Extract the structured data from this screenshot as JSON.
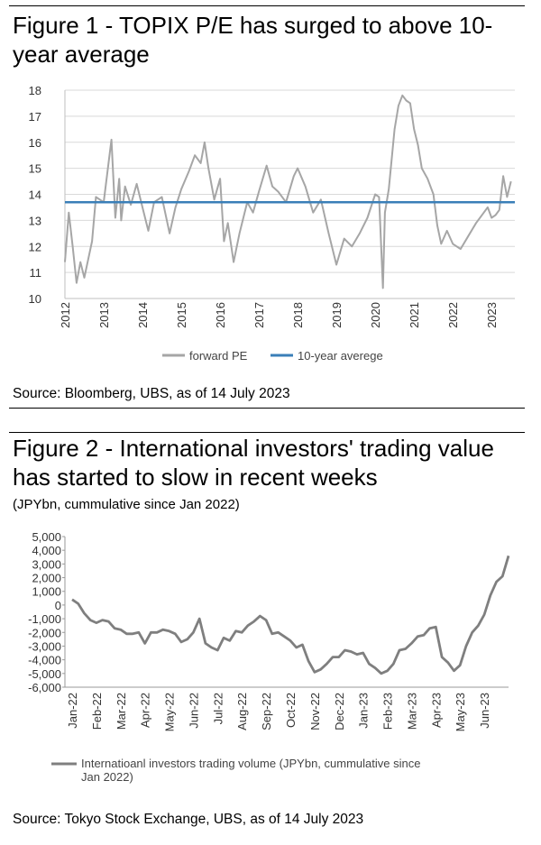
{
  "figure1": {
    "title": "Figure 1 - TOPIX P/E has surged to above 10-year average",
    "source": "Source: Bloomberg, UBS, as of 14 July 2023"
  },
  "figure2": {
    "title": "Figure 2 - International investors' trading value has started to slow in recent weeks",
    "subtitle": "(JPYbn, cummulative since Jan 2022)",
    "source": "Source: Tokyo Stock Exchange, UBS, as of 14 July 2023"
  },
  "chart_data": [
    {
      "type": "line",
      "title": "Figure 1 - TOPIX P/E has surged to above 10-year average",
      "ylim": [
        10,
        18
      ],
      "yticks": [
        10,
        11,
        12,
        13,
        14,
        15,
        16,
        17,
        18
      ],
      "xlim": [
        2012,
        2023.6
      ],
      "xticks": [
        "2012",
        "2013",
        "2014",
        "2015",
        "2016",
        "2017",
        "2018",
        "2019",
        "2020",
        "2021",
        "2022",
        "2023"
      ],
      "grid": true,
      "series": [
        {
          "name": "forward PE",
          "color": "#a6a6a6",
          "x": [
            2012.0,
            2012.1,
            2012.2,
            2012.3,
            2012.4,
            2012.5,
            2012.6,
            2012.7,
            2012.8,
            2012.9,
            2013.0,
            2013.1,
            2013.2,
            2013.3,
            2013.4,
            2013.45,
            2013.55,
            2013.7,
            2013.85,
            2014.0,
            2014.15,
            2014.3,
            2014.5,
            2014.7,
            2014.85,
            2015.0,
            2015.2,
            2015.35,
            2015.5,
            2015.6,
            2015.7,
            2015.85,
            2016.0,
            2016.1,
            2016.2,
            2016.35,
            2016.5,
            2016.7,
            2016.85,
            2017.0,
            2017.2,
            2017.35,
            2017.5,
            2017.7,
            2017.9,
            2018.0,
            2018.2,
            2018.4,
            2018.6,
            2018.8,
            2019.0,
            2019.2,
            2019.4,
            2019.6,
            2019.8,
            2020.0,
            2020.1,
            2020.2,
            2020.25,
            2020.35,
            2020.5,
            2020.6,
            2020.7,
            2020.8,
            2020.9,
            2021.0,
            2021.1,
            2021.2,
            2021.35,
            2021.5,
            2021.6,
            2021.7,
            2021.85,
            2022.0,
            2022.2,
            2022.4,
            2022.6,
            2022.8,
            2022.9,
            2023.0,
            2023.1,
            2023.2,
            2023.3,
            2023.4,
            2023.5
          ],
          "values": [
            11.4,
            13.3,
            12.0,
            10.6,
            11.4,
            10.8,
            11.5,
            12.2,
            13.9,
            13.8,
            13.7,
            14.9,
            16.1,
            13.1,
            14.6,
            13.0,
            14.3,
            13.6,
            14.4,
            13.5,
            12.6,
            13.7,
            13.9,
            12.5,
            13.5,
            14.2,
            14.9,
            15.5,
            15.2,
            16.0,
            15.0,
            13.8,
            14.6,
            12.2,
            12.9,
            11.4,
            12.5,
            13.7,
            13.3,
            14.1,
            15.1,
            14.3,
            14.1,
            13.7,
            14.7,
            15.0,
            14.3,
            13.3,
            13.8,
            12.5,
            11.3,
            12.3,
            12.0,
            12.5,
            13.1,
            14.0,
            13.9,
            10.4,
            13.3,
            14.2,
            16.5,
            17.4,
            17.8,
            17.6,
            17.5,
            16.5,
            15.9,
            15.0,
            14.6,
            14.0,
            12.8,
            12.1,
            12.6,
            12.1,
            11.9,
            12.4,
            12.9,
            13.3,
            13.5,
            13.1,
            13.2,
            13.4,
            14.7,
            13.9,
            14.5
          ]
        },
        {
          "name": "10-year averege",
          "color": "#3a7fb8",
          "x": [
            2012.0,
            2023.6
          ],
          "values": [
            13.7,
            13.7
          ]
        }
      ]
    },
    {
      "type": "line",
      "title": "Figure 2 - International investors' trading value has started to slow in recent weeks",
      "ylabel": "JPYbn, cummulative since Jan 2022",
      "ylim": [
        -6000,
        5000
      ],
      "yticks": [
        "5,000",
        "4,000",
        "3,000",
        "2,000",
        "1,000",
        "0",
        "-1,000",
        "-2,000",
        "-3,000",
        "-4,000",
        "-5,000",
        "-6,000"
      ],
      "ytick_values": [
        5000,
        4000,
        3000,
        2000,
        1000,
        0,
        -1000,
        -2000,
        -3000,
        -4000,
        -5000,
        -6000
      ],
      "categories": [
        "Jan-22",
        "Feb-22",
        "Mar-22",
        "Apr-22",
        "May-22",
        "Jun-22",
        "Jul-22",
        "Aug-22",
        "Sep-22",
        "Oct-22",
        "Nov-22",
        "Dec-22",
        "Jan-23",
        "Feb-23",
        "Mar-23",
        "Apr-23",
        "May-23",
        "Jun-23"
      ],
      "grid": false,
      "series": [
        {
          "name": "Internatioanl investors trading volume (JPYbn, cummulative since Jan 2022)",
          "color": "#7f7f7f",
          "x": [
            0,
            0.25,
            0.5,
            0.75,
            1.0,
            1.25,
            1.5,
            1.75,
            2.0,
            2.25,
            2.5,
            2.75,
            3.0,
            3.25,
            3.5,
            3.75,
            4.0,
            4.25,
            4.5,
            4.75,
            5.0,
            5.25,
            5.5,
            5.75,
            6.0,
            6.25,
            6.5,
            6.75,
            7.0,
            7.25,
            7.5,
            7.75,
            8.0,
            8.25,
            8.5,
            8.75,
            9.0,
            9.25,
            9.5,
            9.75,
            10.0,
            10.25,
            10.5,
            10.75,
            11.0,
            11.25,
            11.5,
            11.75,
            12.0,
            12.25,
            12.5,
            12.75,
            13.0,
            13.25,
            13.5,
            13.75,
            14.0,
            14.25,
            14.5,
            14.75,
            15.0,
            15.25,
            15.5,
            15.75,
            16.0,
            16.25,
            16.5,
            16.75,
            17.0,
            17.25,
            17.5,
            17.75,
            18.0
          ],
          "values": [
            400,
            100,
            -600,
            -1100,
            -1300,
            -1100,
            -1200,
            -1700,
            -1800,
            -2100,
            -2100,
            -2000,
            -2800,
            -2000,
            -2000,
            -1800,
            -1900,
            -2100,
            -2700,
            -2500,
            -2000,
            -1000,
            -2800,
            -3100,
            -3300,
            -2400,
            -2600,
            -1900,
            -2000,
            -1500,
            -1200,
            -800,
            -1100,
            -2100,
            -2000,
            -2300,
            -2600,
            -3100,
            -2900,
            -4100,
            -4900,
            -4700,
            -4300,
            -3800,
            -3800,
            -3300,
            -3400,
            -3600,
            -3500,
            -4300,
            -4600,
            -5000,
            -4800,
            -4300,
            -3300,
            -3200,
            -2800,
            -2300,
            -2200,
            -1700,
            -1600,
            -3800,
            -4200,
            -4800,
            -4400,
            -3000,
            -2000,
            -1500,
            -700,
            700,
            1700,
            2100,
            3600
          ]
        }
      ]
    }
  ]
}
